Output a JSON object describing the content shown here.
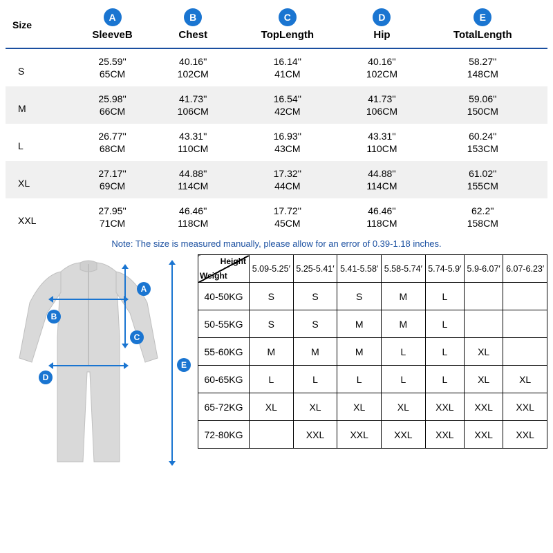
{
  "sizeTable": {
    "sizeHeader": "Size",
    "columns": [
      {
        "badge": "A",
        "label": "SleeveB"
      },
      {
        "badge": "B",
        "label": "Chest"
      },
      {
        "badge": "C",
        "label": "TopLength"
      },
      {
        "badge": "D",
        "label": "Hip"
      },
      {
        "badge": "E",
        "label": "TotalLength"
      }
    ],
    "rows": [
      {
        "size": "S",
        "inches": [
          "25.59''",
          "40.16''",
          "16.14''",
          "40.16''",
          "58.27''"
        ],
        "cm": [
          "65CM",
          "102CM",
          "41CM",
          "102CM",
          "148CM"
        ],
        "stripe": false
      },
      {
        "size": "M",
        "inches": [
          "25.98''",
          "41.73''",
          "16.54''",
          "41.73''",
          "59.06''"
        ],
        "cm": [
          "66CM",
          "106CM",
          "42CM",
          "106CM",
          "150CM"
        ],
        "stripe": true
      },
      {
        "size": "L",
        "inches": [
          "26.77''",
          "43.31''",
          "16.93''",
          "43.31''",
          "60.24''"
        ],
        "cm": [
          "68CM",
          "110CM",
          "43CM",
          "110CM",
          "153CM"
        ],
        "stripe": false
      },
      {
        "size": "XL",
        "inches": [
          "27.17''",
          "44.88''",
          "17.32''",
          "44.88''",
          "61.02''"
        ],
        "cm": [
          "69CM",
          "114CM",
          "44CM",
          "114CM",
          "155CM"
        ],
        "stripe": true
      },
      {
        "size": "XXL",
        "inches": [
          "27.95''",
          "46.46''",
          "17.72''",
          "46.46''",
          "62.2''"
        ],
        "cm": [
          "71CM",
          "118CM",
          "45CM",
          "118CM",
          "158CM"
        ],
        "stripe": false
      }
    ]
  },
  "note": "Note: The size is measured manually, please allow for an error of 0.39-1.18 inches.",
  "recTable": {
    "cornerHeight": "Height",
    "cornerWeight": "Weight",
    "heightCols": [
      "5.09-5.25′",
      "5.25-5.41′",
      "5.41-5.58′",
      "5.58-5.74′",
      "5.74-5.9′",
      "5.9-6.07′",
      "6.07-6.23′"
    ],
    "rows": [
      {
        "weight": "40-50KG",
        "cells": [
          "S",
          "S",
          "S",
          "M",
          "L",
          "",
          ""
        ]
      },
      {
        "weight": "50-55KG",
        "cells": [
          "S",
          "S",
          "M",
          "M",
          "L",
          "",
          ""
        ]
      },
      {
        "weight": "55-60KG",
        "cells": [
          "M",
          "M",
          "M",
          "L",
          "L",
          "XL",
          ""
        ]
      },
      {
        "weight": "60-65KG",
        "cells": [
          "L",
          "L",
          "L",
          "L",
          "L",
          "XL",
          "XL"
        ]
      },
      {
        "weight": "65-72KG",
        "cells": [
          "XL",
          "XL",
          "XL",
          "XL",
          "XXL",
          "XXL",
          "XXL"
        ]
      },
      {
        "weight": "72-80KG",
        "cells": [
          "",
          "XXL",
          "XXL",
          "XXL",
          "XXL",
          "XXL",
          "XXL"
        ]
      }
    ]
  },
  "diagram": {
    "badges": {
      "A": "A",
      "B": "B",
      "C": "C",
      "D": "D",
      "E": "E"
    }
  },
  "colors": {
    "accent": "#1a75d1",
    "headerRule": "#1a4fa0",
    "stripe": "#f0f0f0",
    "garment": "#d9d9d9",
    "garmentDark": "#bfbfbf"
  }
}
